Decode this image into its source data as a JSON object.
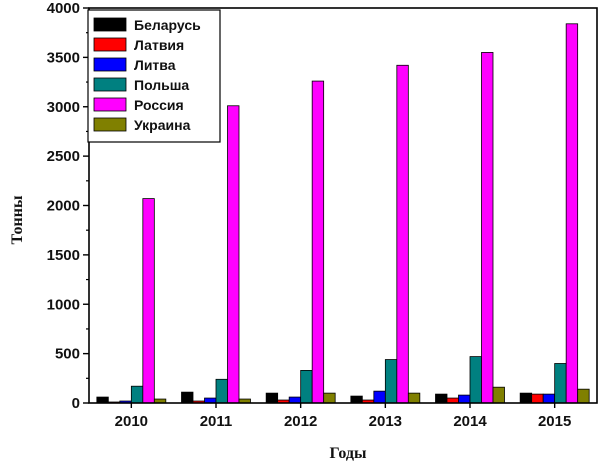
{
  "chart_data": {
    "type": "bar",
    "xlabel": "Годы",
    "ylabel": "Тонны",
    "categories": [
      "2010",
      "2011",
      "2012",
      "2013",
      "2014",
      "2015"
    ],
    "ylim": [
      0,
      4000
    ],
    "yticks": [
      "0",
      "500",
      "1000",
      "1500",
      "2000",
      "2500",
      "3000",
      "3500",
      "4000"
    ],
    "legend_position": "top-left",
    "series": [
      {
        "name": "Беларусь",
        "color": "#000000",
        "values": [
          60,
          110,
          100,
          70,
          90,
          100
        ]
      },
      {
        "name": "Латвия",
        "color": "#ff0000",
        "values": [
          10,
          20,
          30,
          30,
          50,
          90
        ]
      },
      {
        "name": "Литва",
        "color": "#0000ff",
        "values": [
          20,
          50,
          60,
          120,
          80,
          90
        ]
      },
      {
        "name": "Польша",
        "color": "#008080",
        "values": [
          170,
          240,
          330,
          440,
          470,
          400
        ]
      },
      {
        "name": "Россия",
        "color": "#ff00ff",
        "values": [
          2070,
          3010,
          3260,
          3420,
          3550,
          3840
        ]
      },
      {
        "name": "Украина",
        "color": "#808000",
        "values": [
          40,
          40,
          100,
          100,
          160,
          140
        ]
      }
    ]
  }
}
